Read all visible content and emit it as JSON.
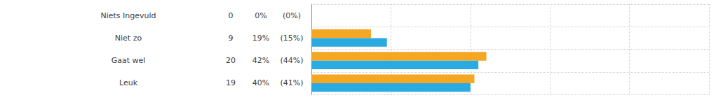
{
  "chart_data": {
    "type": "bar",
    "orientation": "horizontal",
    "categories": [
      "Niets Ingevuld",
      "Niet zo",
      "Gaat wel",
      "Leuk"
    ],
    "counts": [
      0,
      9,
      20,
      19
    ],
    "series": [
      {
        "color": "#F5A623",
        "values": [
          0,
          15,
          44,
          41
        ],
        "value_labels": [
          "(0%)",
          "(15%)",
          "(44%)",
          "(41%)"
        ]
      },
      {
        "color": "#29ABE2",
        "values": [
          0,
          19,
          42,
          40
        ],
        "value_labels": [
          "0%",
          "19%",
          "42%",
          "40%"
        ]
      }
    ],
    "xlim": [
      0,
      100
    ],
    "xticks": [
      0,
      20,
      40,
      60,
      80,
      100
    ],
    "grid": true,
    "tick_labels": "y"
  }
}
